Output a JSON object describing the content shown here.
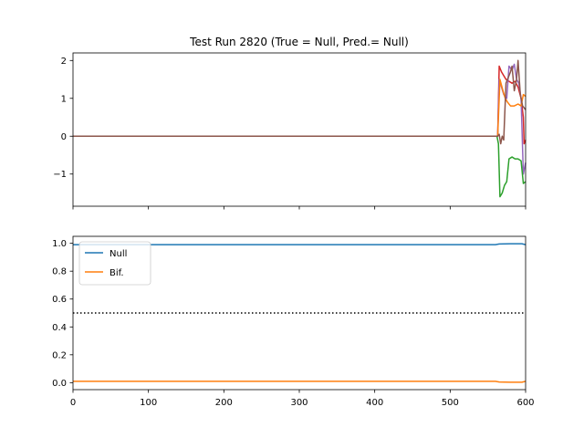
{
  "chart_data": [
    {
      "type": "line",
      "title": "Test Run 2820 (True = Null, Pred.= Null)",
      "xlabel": "",
      "ylabel": "",
      "xlim": [
        0,
        600
      ],
      "ylim": [
        -1.85,
        2.2
      ],
      "yticks": [
        -1,
        0,
        1,
        2
      ],
      "xticks": [
        0,
        100,
        200,
        300,
        400,
        500,
        600
      ],
      "show_xtick_labels": false,
      "grid": false,
      "series": [
        {
          "color": "#d62728",
          "points": [
            [
              0,
              0
            ],
            [
              563,
              0
            ],
            [
              565,
              1.85
            ],
            [
              568,
              1.7
            ],
            [
              571,
              1.6
            ],
            [
              574,
              1.5
            ],
            [
              578,
              1.45
            ],
            [
              582,
              1.4
            ],
            [
              586,
              1.45
            ],
            [
              590,
              1.3
            ],
            [
              594,
              1.0
            ],
            [
              597,
              0.5
            ],
            [
              598,
              -0.2
            ],
            [
              600,
              -0.1
            ]
          ]
        },
        {
          "color": "#9467bd",
          "points": [
            [
              0,
              0
            ],
            [
              563,
              0
            ],
            [
              565,
              1.5
            ],
            [
              568,
              1.3
            ],
            [
              571,
              1.1
            ],
            [
              575,
              1.0
            ],
            [
              578,
              1.85
            ],
            [
              582,
              1.75
            ],
            [
              585,
              1.9
            ],
            [
              588,
              1.5
            ],
            [
              591,
              1.4
            ],
            [
              594,
              1.0
            ],
            [
              597,
              -1.0
            ],
            [
              600,
              -0.7
            ]
          ]
        },
        {
          "color": "#2ca02c",
          "points": [
            [
              0,
              0
            ],
            [
              562,
              0
            ],
            [
              564,
              -0.2
            ],
            [
              566,
              -1.6
            ],
            [
              569,
              -1.5
            ],
            [
              572,
              -1.3
            ],
            [
              575,
              -1.2
            ],
            [
              578,
              -0.6
            ],
            [
              582,
              -0.55
            ],
            [
              586,
              -0.6
            ],
            [
              590,
              -0.6
            ],
            [
              594,
              -0.65
            ],
            [
              597,
              -1.25
            ],
            [
              600,
              -1.2
            ]
          ]
        },
        {
          "color": "#ff7f0e",
          "points": [
            [
              0,
              0
            ],
            [
              563,
              0
            ],
            [
              566,
              1.5
            ],
            [
              570,
              1.2
            ],
            [
              573,
              1.0
            ],
            [
              576,
              0.9
            ],
            [
              580,
              0.8
            ],
            [
              585,
              0.8
            ],
            [
              590,
              0.85
            ],
            [
              594,
              0.8
            ],
            [
              597,
              1.1
            ],
            [
              600,
              1.05
            ]
          ]
        },
        {
          "color": "#8c564b",
          "points": [
            [
              0,
              0
            ],
            [
              563,
              0
            ],
            [
              565,
              0.05
            ],
            [
              567,
              -0.2
            ],
            [
              569,
              0.0
            ],
            [
              571,
              -0.1
            ],
            [
              574,
              1.4
            ],
            [
              577,
              1.55
            ],
            [
              580,
              1.7
            ],
            [
              582,
              1.85
            ],
            [
              585,
              1.2
            ],
            [
              588,
              1.5
            ],
            [
              590,
              2.0
            ],
            [
              593,
              1.1
            ],
            [
              596,
              0.8
            ],
            [
              600,
              0.7
            ]
          ]
        }
      ]
    },
    {
      "type": "line",
      "xlabel": "",
      "ylabel": "",
      "xlim": [
        0,
        600
      ],
      "ylim": [
        -0.05,
        1.05
      ],
      "yticks": [
        0.0,
        0.2,
        0.4,
        0.6,
        0.8,
        1.0
      ],
      "ytick_labels": [
        "0.0",
        "0.2",
        "0.4",
        "0.6",
        "0.8",
        "1.0"
      ],
      "xticks": [
        0,
        100,
        200,
        300,
        400,
        500,
        600
      ],
      "xtick_labels": [
        "0",
        "100",
        "200",
        "300",
        "400",
        "500",
        "600"
      ],
      "grid": false,
      "legend_position": "top-left",
      "series": [
        {
          "name": "Null",
          "color": "#1f77b4",
          "points": [
            [
              0,
              0.99
            ],
            [
              560,
              0.99
            ],
            [
              565,
              0.995
            ],
            [
              580,
              0.997
            ],
            [
              595,
              0.997
            ],
            [
              600,
              0.99
            ]
          ]
        },
        {
          "name": "Bif.",
          "color": "#ff7f0e",
          "points": [
            [
              0,
              0.01
            ],
            [
              560,
              0.01
            ],
            [
              565,
              0.005
            ],
            [
              580,
              0.003
            ],
            [
              595,
              0.003
            ],
            [
              600,
              0.01
            ]
          ]
        }
      ],
      "threshold": {
        "y": 0.5,
        "color": "#000000",
        "style": "dotted"
      }
    }
  ]
}
